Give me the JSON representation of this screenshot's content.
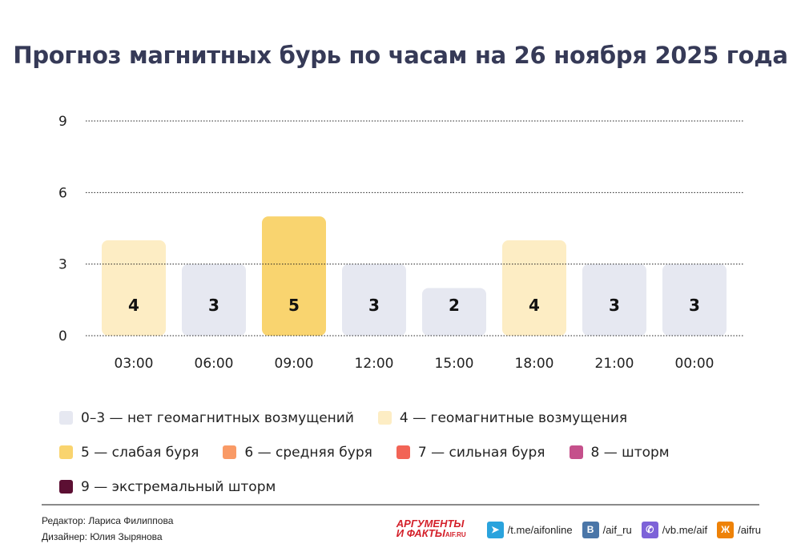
{
  "title": "Прогноз магнитных бурь по часам на 26 ноября 2025 года",
  "chart_data": {
    "type": "bar",
    "title": "Прогноз магнитных бурь по часам на 26 ноября 2025 года",
    "categories": [
      "03:00",
      "06:00",
      "09:00",
      "12:00",
      "15:00",
      "18:00",
      "21:00",
      "00:00"
    ],
    "values": [
      4,
      3,
      5,
      3,
      2,
      4,
      3,
      3
    ],
    "ylim": [
      0,
      9
    ],
    "yticks": [
      "0",
      "3",
      "6",
      "9"
    ],
    "grid": true,
    "gridstyle": "dotted",
    "legend_placement": "bottom",
    "xlabel": "",
    "ylabel": ""
  },
  "legend": [
    {
      "label": "0–3 — нет геомагнитных возмущений",
      "color": "#e6e8f1"
    },
    {
      "label": "4 — геомагнитные возмущения",
      "color": "#fdedc4"
    },
    {
      "label": "5 — слабая буря",
      "color": "#f9d46f"
    },
    {
      "label": "6 — средняя буря",
      "color": "#f99a66"
    },
    {
      "label": "7 — сильная буря",
      "color": "#f26456"
    },
    {
      "label": "8 — шторм",
      "color": "#c5508b"
    },
    {
      "label": "9 — экстремальный шторм",
      "color": "#5c0f33"
    }
  ],
  "footer": {
    "editor": "Редактор: Лариса Филиппова",
    "designer": "Дизайнер: Юлия Зырянова",
    "logo_line1": "АРГУМЕНТЫ",
    "logo_line2": "И ФАКТЫ",
    "logo_site": "AIF.RU",
    "links": [
      {
        "icon": "telegram-icon",
        "label": "/t.me/aifonline",
        "color": "#2aa3dd",
        "glyph": "➤"
      },
      {
        "icon": "vk-icon",
        "label": "/aif_ru",
        "color": "#4a76a8",
        "glyph": "B"
      },
      {
        "icon": "viber-icon",
        "label": "/vb.me/aif",
        "color": "#7d62d8",
        "glyph": "✆"
      },
      {
        "icon": "odnoklassniki-icon",
        "label": "/aifru",
        "color": "#ee8208",
        "glyph": "Ж"
      }
    ]
  }
}
